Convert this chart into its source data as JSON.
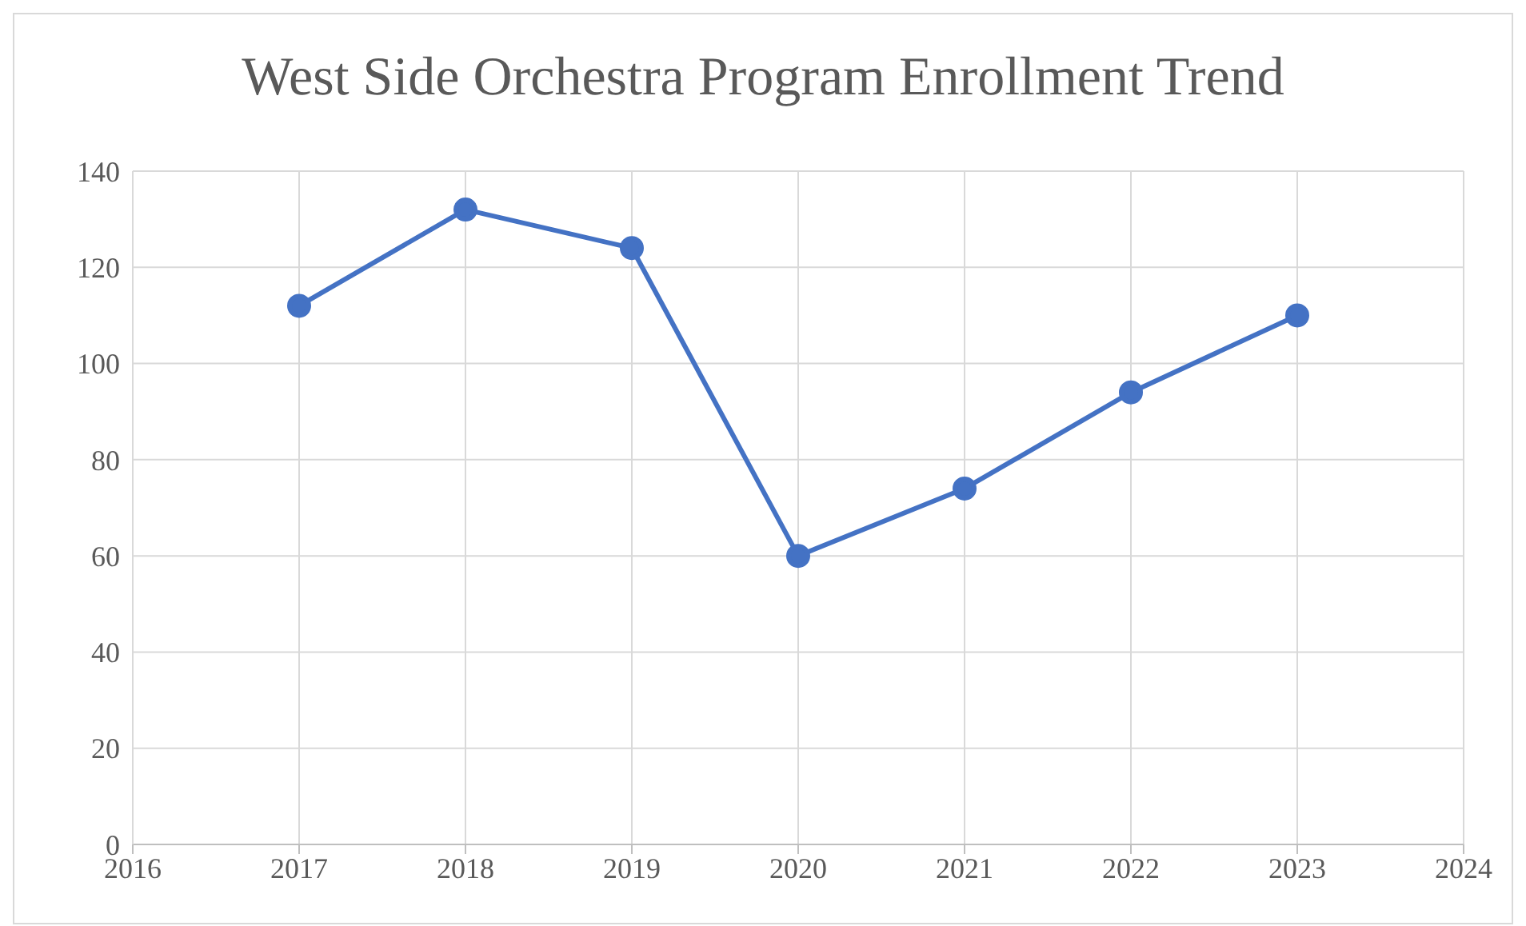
{
  "chart_data": {
    "type": "line",
    "title": "West Side Orchestra Program Enrollment Trend",
    "x": [
      2017,
      2018,
      2019,
      2020,
      2021,
      2022,
      2023
    ],
    "series": [
      {
        "color": "#4472c4",
        "values": [
          112,
          132,
          124,
          60,
          74,
          94,
          110
        ]
      }
    ],
    "xlim": [
      2016,
      2024
    ],
    "xticks": [
      2016,
      2017,
      2018,
      2019,
      2020,
      2021,
      2022,
      2023,
      2024
    ],
    "ylim": [
      0,
      140
    ],
    "yticks": [
      0,
      20,
      40,
      60,
      80,
      100,
      120,
      140
    ],
    "grid": true,
    "marker": "circle",
    "line_style": "solid"
  }
}
